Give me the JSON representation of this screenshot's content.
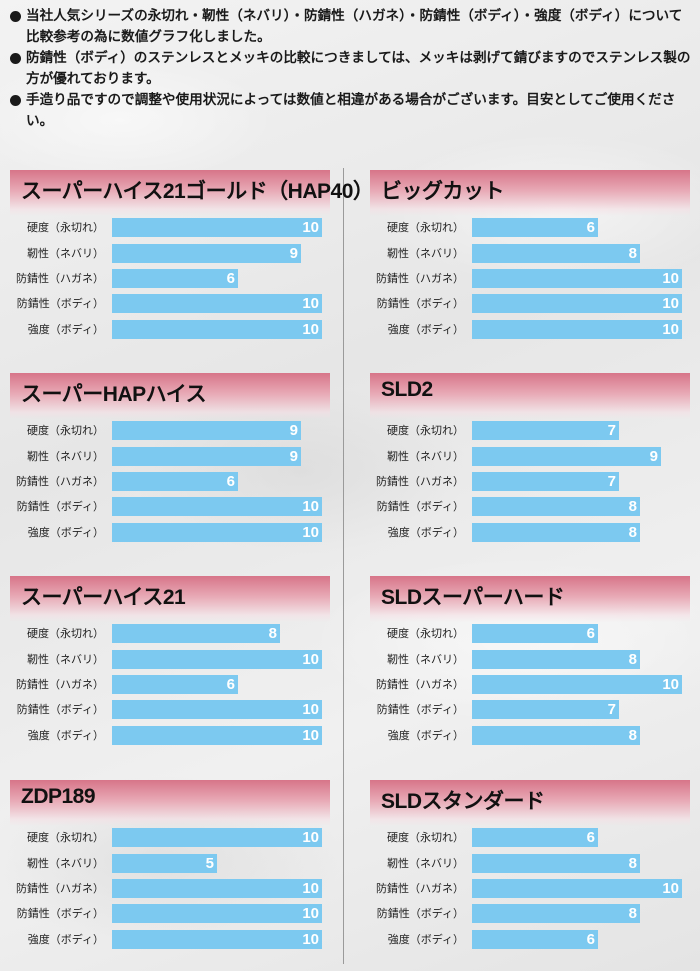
{
  "notes": [
    "当社人気シリーズの永切れ・靭性（ネバリ）・防錆性（ハガネ）・防錆性（ボディ）・強度（ボディ）について比較参考の為に数値グラフ化しました。",
    "防錆性（ボディ）のステンレスとメッキの比較につきましては、メッキは剥げて錆びますのでステンレス製の方が優れております。",
    "手造り品ですので調整や使用状況によっては数値と相違がある場合がございます。目安としてご使用ください。"
  ],
  "colors": {
    "bar": "#7cc9f0",
    "header_pink": "#d77589",
    "value_text": "#ffffff"
  },
  "chart_data": [
    {
      "type": "bar",
      "orientation": "horizontal",
      "title": "スーパーハイス21ゴールド（HAP40）",
      "categories": [
        "硬度（永切れ）",
        "靭性（ネバリ）",
        "防錆性（ハガネ）",
        "防錆性（ボディ）",
        "強度（ボディ）"
      ],
      "values": [
        10,
        9,
        6,
        10,
        10
      ],
      "xlim": [
        0,
        10
      ]
    },
    {
      "type": "bar",
      "orientation": "horizontal",
      "title": "ビッグカット",
      "categories": [
        "硬度（永切れ）",
        "靭性（ネバリ）",
        "防錆性（ハガネ）",
        "防錆性（ボディ）",
        "強度（ボディ）"
      ],
      "values": [
        6,
        8,
        10,
        10,
        10
      ],
      "xlim": [
        0,
        10
      ]
    },
    {
      "type": "bar",
      "orientation": "horizontal",
      "title": "スーパーHAPハイス",
      "categories": [
        "硬度（永切れ）",
        "靭性（ネバリ）",
        "防錆性（ハガネ）",
        "防錆性（ボディ）",
        "強度（ボディ）"
      ],
      "values": [
        9,
        9,
        6,
        10,
        10
      ],
      "xlim": [
        0,
        10
      ]
    },
    {
      "type": "bar",
      "orientation": "horizontal",
      "title": "SLD2",
      "categories": [
        "硬度（永切れ）",
        "靭性（ネバリ）",
        "防錆性（ハガネ）",
        "防錆性（ボディ）",
        "強度（ボディ）"
      ],
      "values": [
        7,
        9,
        7,
        8,
        8
      ],
      "xlim": [
        0,
        10
      ]
    },
    {
      "type": "bar",
      "orientation": "horizontal",
      "title": "スーパーハイス21",
      "categories": [
        "硬度（永切れ）",
        "靭性（ネバリ）",
        "防錆性（ハガネ）",
        "防錆性（ボディ）",
        "強度（ボディ）"
      ],
      "values": [
        8,
        10,
        6,
        10,
        10
      ],
      "xlim": [
        0,
        10
      ]
    },
    {
      "type": "bar",
      "orientation": "horizontal",
      "title": "SLDスーパーハード",
      "categories": [
        "硬度（永切れ）",
        "靭性（ネバリ）",
        "防錆性（ハガネ）",
        "防錆性（ボディ）",
        "強度（ボディ）"
      ],
      "values": [
        6,
        8,
        10,
        7,
        8
      ],
      "xlim": [
        0,
        10
      ]
    },
    {
      "type": "bar",
      "orientation": "horizontal",
      "title": "ZDP189",
      "categories": [
        "硬度（永切れ）",
        "靭性（ネバリ）",
        "防錆性（ハガネ）",
        "防錆性（ボディ）",
        "強度（ボディ）"
      ],
      "values": [
        10,
        5,
        10,
        10,
        10
      ],
      "xlim": [
        0,
        10
      ]
    },
    {
      "type": "bar",
      "orientation": "horizontal",
      "title": "SLDスタンダード",
      "categories": [
        "硬度（永切れ）",
        "靭性（ネバリ）",
        "防錆性（ハガネ）",
        "防錆性（ボディ）",
        "強度（ボディ）"
      ],
      "values": [
        6,
        8,
        10,
        8,
        6
      ],
      "xlim": [
        0,
        10
      ]
    }
  ]
}
